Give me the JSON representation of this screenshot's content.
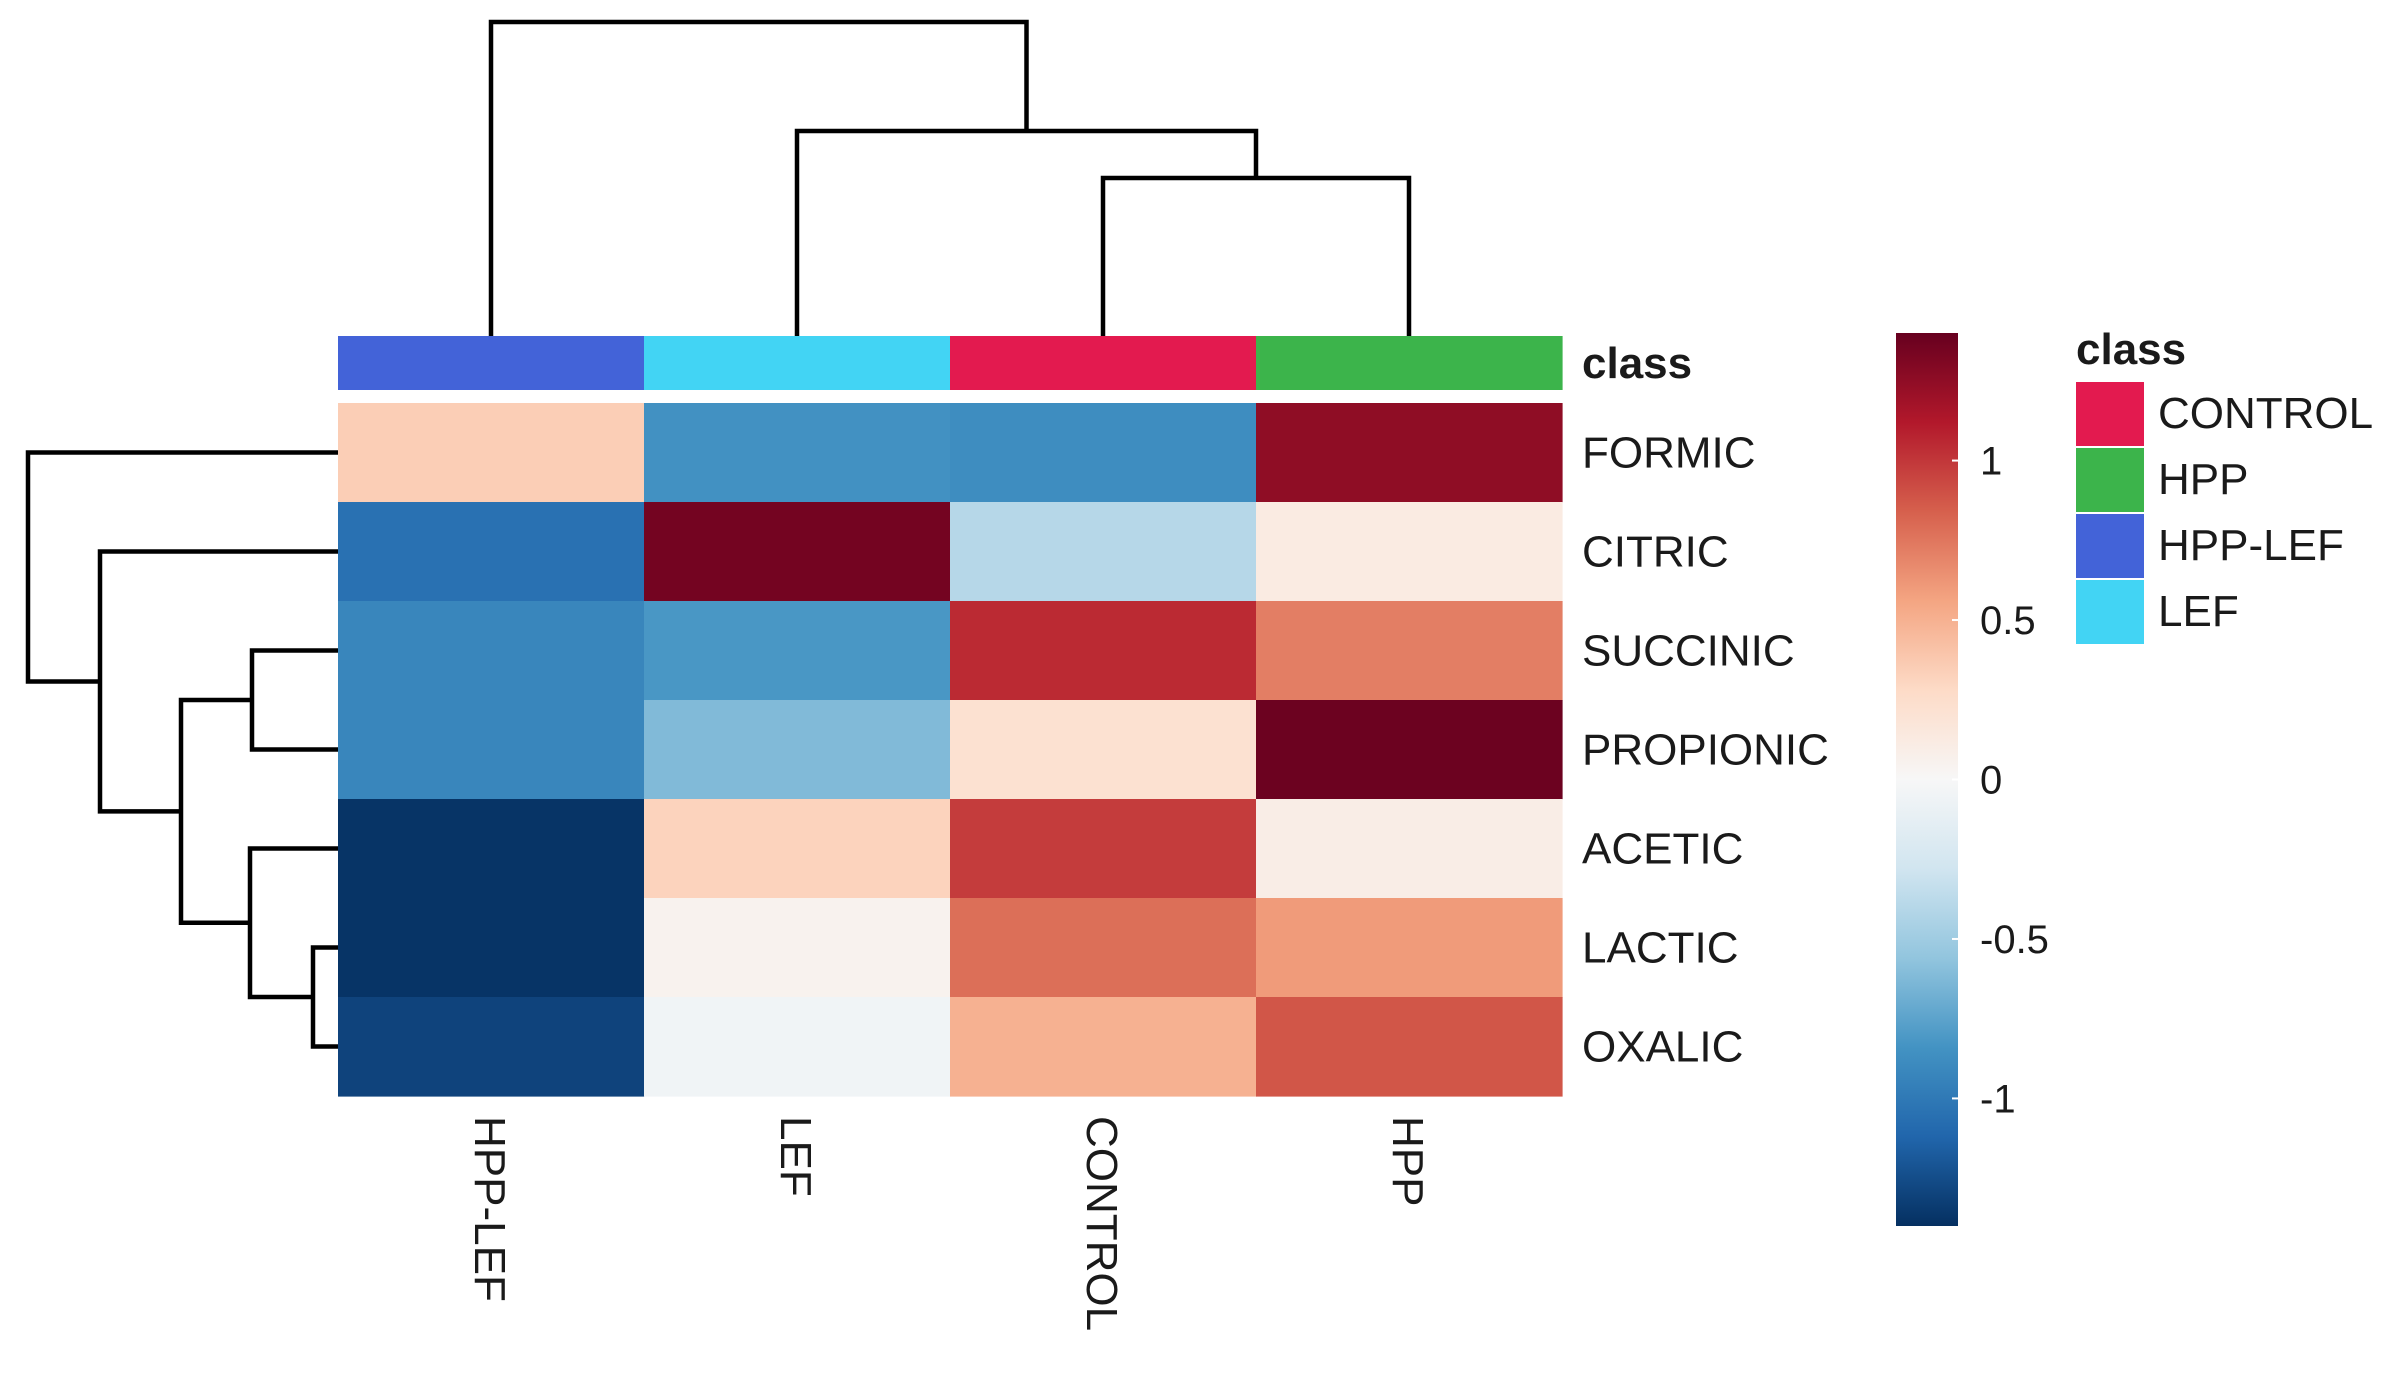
{
  "chart_data": {
    "type": "heatmap",
    "title": "",
    "columns": [
      "HPP-LEF",
      "LEF",
      "CONTROL",
      "HPP"
    ],
    "rows": [
      "FORMIC",
      "CITRIC",
      "SUCCINIC",
      "PROPIONIC",
      "ACETIC",
      "LACTIC",
      "OXALIC"
    ],
    "values": [
      [
        0.35,
        -0.85,
        -0.88,
        1.25
      ],
      [
        -1.05,
        1.35,
        -0.4,
        0.12
      ],
      [
        -0.92,
        -0.82,
        1.05,
        0.72
      ],
      [
        -0.92,
        -0.62,
        0.22,
        1.38
      ],
      [
        -1.38,
        0.32,
        0.98,
        0.1
      ],
      [
        -1.38,
        0.05,
        0.78,
        0.6
      ],
      [
        -1.3,
        -0.05,
        0.5,
        0.88
      ]
    ],
    "color_scale": {
      "min": -1.4,
      "max": 1.4,
      "ticks": [
        1,
        0.5,
        0,
        -0.5,
        -1
      ],
      "tick_labels": [
        "1",
        "0.5",
        "0",
        "-0.5",
        "-1"
      ],
      "stops": [
        "#053061",
        "#2166ac",
        "#4393c3",
        "#92c5de",
        "#d1e5f0",
        "#f7f7f7",
        "#fddbc7",
        "#f4a582",
        "#d6604d",
        "#b2182b",
        "#67001f"
      ]
    },
    "annotation": {
      "title": "class",
      "legend_title": "class",
      "column_classes": [
        "HPP-LEF",
        "LEF",
        "CONTROL",
        "HPP"
      ],
      "legend": [
        {
          "label": "CONTROL",
          "color": "#e31a4f"
        },
        {
          "label": "HPP",
          "color": "#3cb44b"
        },
        {
          "label": "HPP-LEF",
          "color": "#4363d8"
        },
        {
          "label": "LEF",
          "color": "#42d4f4"
        }
      ]
    },
    "column_dendrogram": "((HPP-LEF),(LEF,(CONTROL,HPP)))",
    "row_dendrogram": "(FORMIC,(CITRIC,((SUCCINIC,PROPIONIC),(ACETIC,(LACTIC,OXALIC)))))"
  }
}
